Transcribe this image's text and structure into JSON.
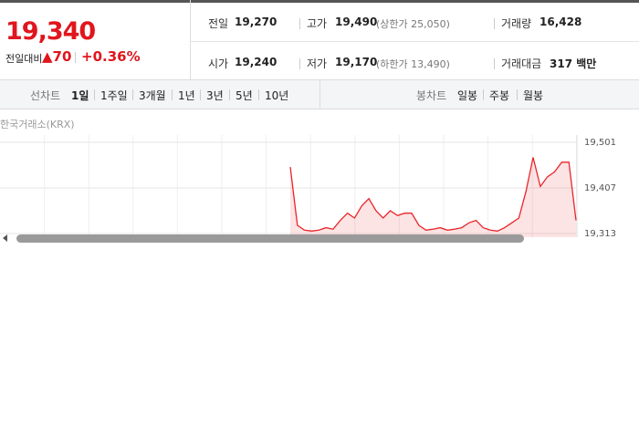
{
  "header": {
    "price": "19,340",
    "change_label": "전일대비",
    "change": "▲70",
    "change_pct": "+0.36%"
  },
  "info": {
    "rows": [
      [
        {
          "label": "전일",
          "value": "19,270"
        },
        {
          "label": "고가",
          "value": "19,490",
          "note": "(상한가 25,050)"
        },
        {
          "label": "거래량",
          "value": "16,428"
        }
      ],
      [
        {
          "label": "시가",
          "value": "19,240"
        },
        {
          "label": "저가",
          "value": "19,170",
          "note": "(하한가 13,490)"
        },
        {
          "label": "거래대금",
          "value": "317 백만"
        }
      ]
    ]
  },
  "tabs": {
    "line_label": "선차트",
    "line": [
      "1일",
      "1주일",
      "3개월",
      "1년",
      "3년",
      "5년",
      "10년"
    ],
    "candle_label": "봉차트",
    "candle": [
      "일봉",
      "주봉",
      "월봉"
    ]
  },
  "chart_data": {
    "type": "line",
    "source": "한국거래소(KRX)",
    "color": "#e8262b",
    "ylim": [
      19313,
      19501
    ],
    "yticks": [
      {
        "value": 19501,
        "label": "19,501"
      },
      {
        "value": 19407,
        "label": "19,407"
      },
      {
        "value": 19313,
        "label": "19,313"
      }
    ],
    "values": [
      19450,
      19330,
      19320,
      19318,
      19320,
      19325,
      19322,
      19340,
      19355,
      19345,
      19370,
      19385,
      19360,
      19345,
      19360,
      19350,
      19355,
      19355,
      19330,
      19320,
      19322,
      19325,
      19320,
      19322,
      19325,
      19335,
      19340,
      19325,
      19320,
      19318,
      19325,
      19335,
      19345,
      19400,
      19470,
      19410,
      19430,
      19440,
      19460,
      19460,
      19340
    ]
  }
}
